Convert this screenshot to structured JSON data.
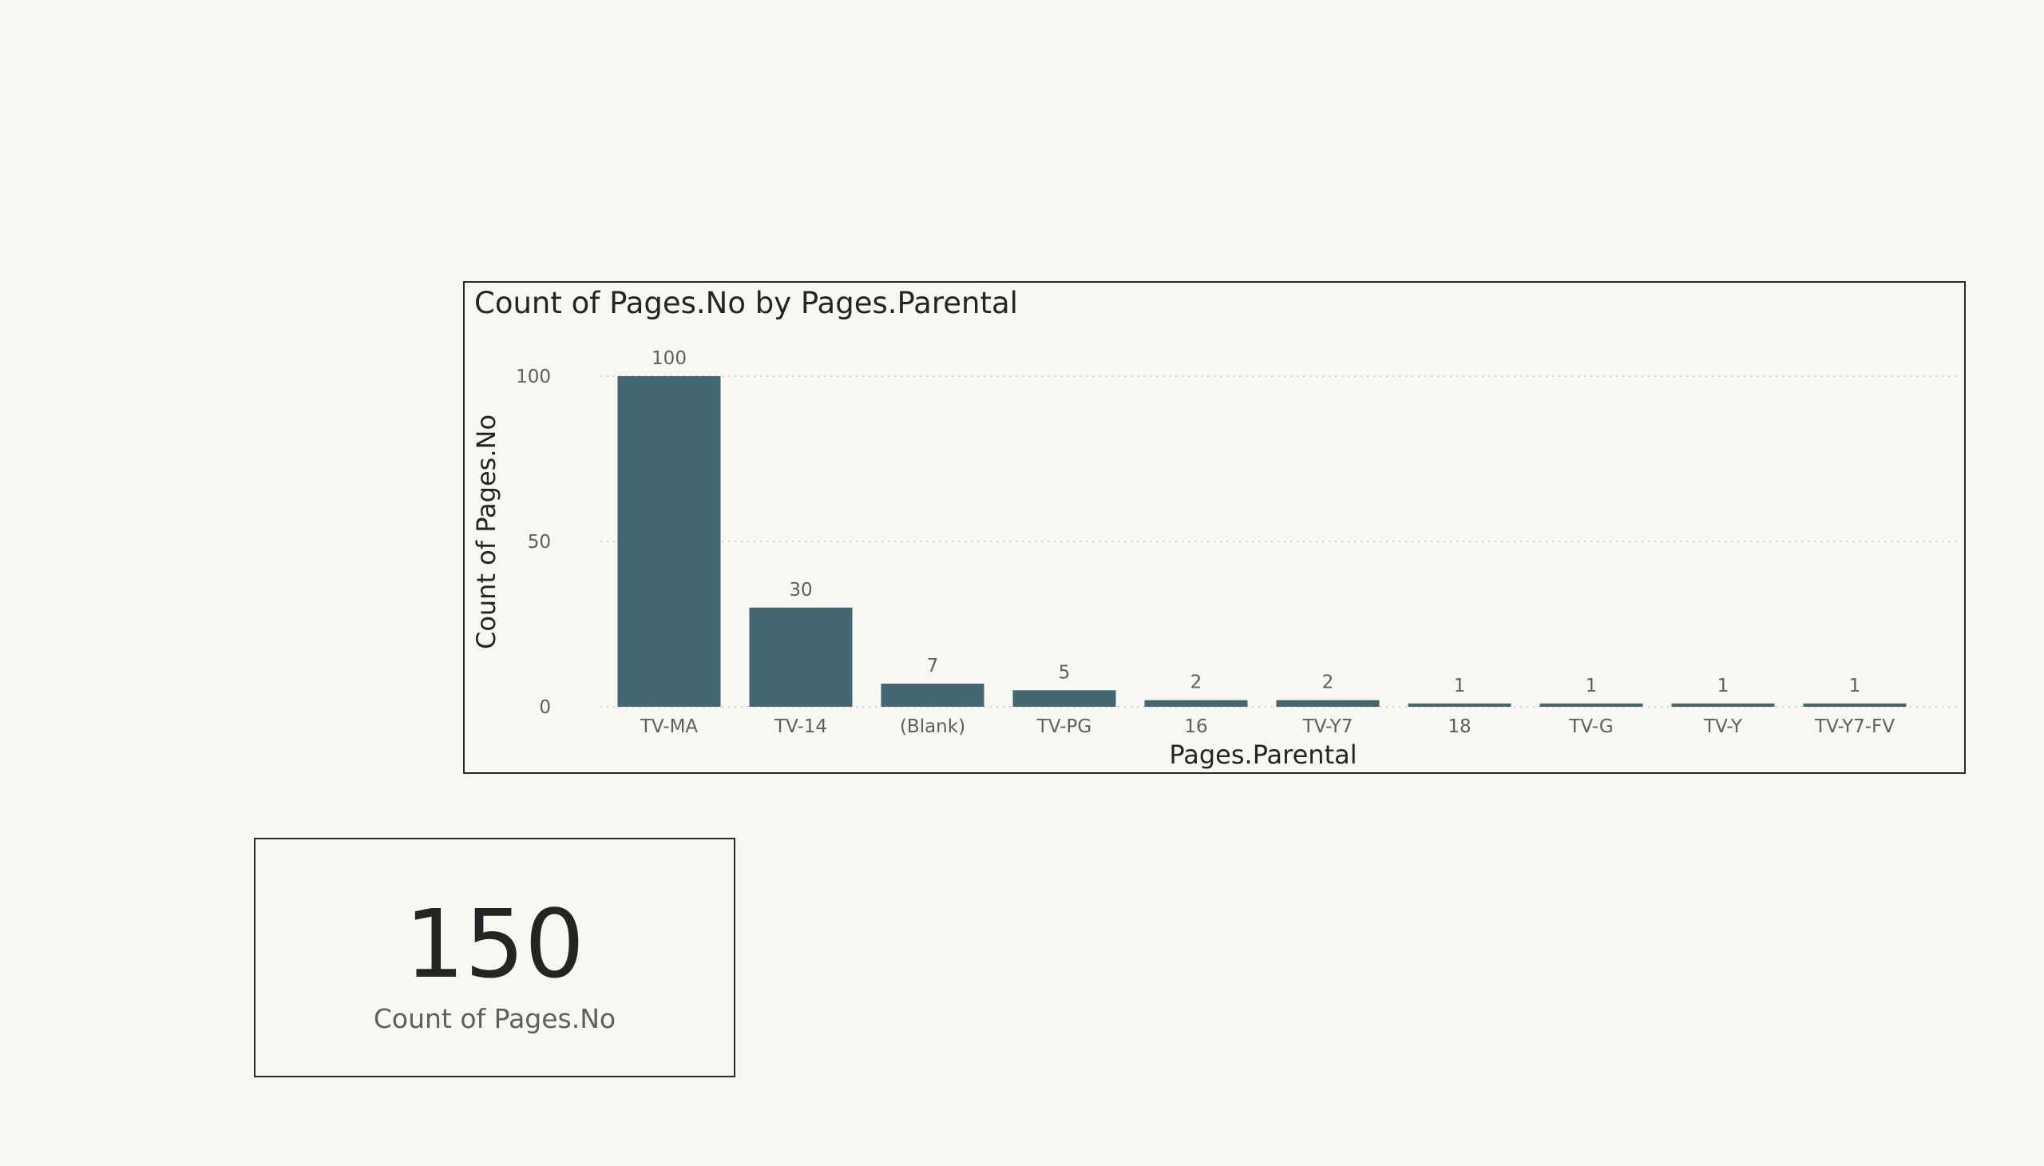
{
  "chart_data": {
    "type": "bar",
    "title": "Count of Pages.No by Pages.Parental",
    "xlabel": "Pages.Parental",
    "ylabel": "Count of Pages.No",
    "categories": [
      "TV-MA",
      "TV-14",
      "(Blank)",
      "TV-PG",
      "16",
      "TV-Y7",
      "18",
      "TV-G",
      "TV-Y",
      "TV-Y7-FV"
    ],
    "values": [
      100,
      30,
      7,
      5,
      2,
      2,
      1,
      1,
      1,
      1
    ],
    "data_labels": [
      "100",
      "30",
      "7",
      "5",
      "2",
      "2",
      "1",
      "1",
      "1",
      "1"
    ],
    "ylim": [
      0,
      100
    ],
    "yticks": [
      0,
      50,
      100
    ],
    "grid": true,
    "bar_color": "#44676f"
  },
  "card": {
    "value": "150",
    "label": "Count of Pages.No"
  }
}
